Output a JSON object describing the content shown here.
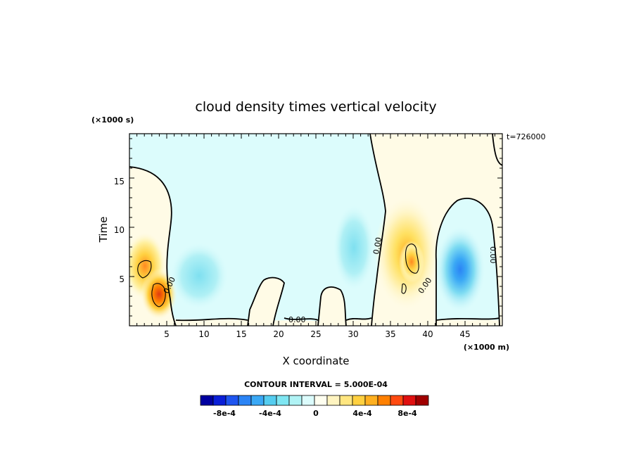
{
  "chart_data": {
    "type": "heatmap",
    "title": "cloud density times vertical velocity",
    "xlabel": "X coordinate",
    "ylabel": "Time",
    "x_units": "(×1000 m)",
    "y_units": "(×1000 s)",
    "time_stamp": "t=726000",
    "xlim": [
      0,
      50
    ],
    "ylim": [
      0,
      19.5
    ],
    "xticks": [
      "5",
      "10",
      "15",
      "20",
      "25",
      "30",
      "35",
      "40",
      "45"
    ],
    "yticks": [
      "5",
      "10",
      "15"
    ],
    "zero_contour_labels": [
      "0.00",
      "0.00",
      "0.00",
      "0.00",
      "0.00"
    ],
    "contour_interval_text": "CONTOUR INTERVAL = 5.000E-04",
    "colorbar": {
      "labels": [
        "-8e-4",
        "-4e-4",
        "0",
        "4e-4",
        "8e-4"
      ],
      "colors": [
        "#0000a0",
        "#0a1fd8",
        "#1f55f0",
        "#2b84f5",
        "#3aa8f5",
        "#55cdf0",
        "#7fe6f2",
        "#b0f3f5",
        "#dcfcfc",
        "#fffff0",
        "#fff4c0",
        "#ffe680",
        "#ffd040",
        "#ffb020",
        "#ff8000",
        "#ff4a10",
        "#e01010",
        "#a00000"
      ]
    },
    "features": [
      {
        "kind": "positive",
        "x": 2,
        "y": 6,
        "peak": 0.00065
      },
      {
        "kind": "positive",
        "x": 3.8,
        "y": 3,
        "peak": 0.0008
      },
      {
        "kind": "negative",
        "x": 8.5,
        "y": 5,
        "peak": -0.0002
      },
      {
        "kind": "negative",
        "x": 30,
        "y": 7,
        "peak": -0.00015
      },
      {
        "kind": "positive",
        "x": 37.5,
        "y": 7,
        "peak": 0.00055
      },
      {
        "kind": "negative",
        "x": 44.5,
        "y": 5.8,
        "peak": -0.00045
      }
    ]
  }
}
